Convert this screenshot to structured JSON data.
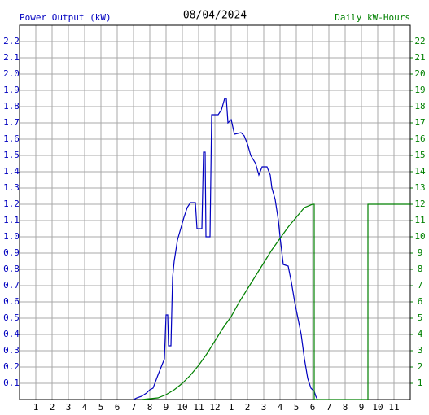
{
  "chart_data": {
    "type": "line",
    "title": "08/04/2024",
    "ylabel": "Power Output (kW)",
    "y2label": "Daily kW-Hours",
    "xlim": [
      0,
      24
    ],
    "xticks": [
      1,
      2,
      3,
      4,
      5,
      6,
      7,
      8,
      9,
      10,
      11,
      12,
      {
        "value": 13,
        "label": "1"
      },
      {
        "value": 14,
        "label": "2"
      },
      {
        "value": 15,
        "label": "3"
      },
      {
        "value": 16,
        "label": "4"
      },
      {
        "value": 17,
        "label": "5"
      },
      {
        "value": 18,
        "label": "6"
      },
      {
        "value": 19,
        "label": "7"
      },
      {
        "value": 20,
        "label": "8"
      },
      {
        "value": 21,
        "label": "9"
      },
      {
        "value": 22,
        "label": "10"
      },
      {
        "value": 23,
        "label": "11"
      }
    ],
    "ylim": [
      0,
      2.3
    ],
    "yticks": [
      0.1,
      0.2,
      0.3,
      0.4,
      0.5,
      0.6,
      0.7,
      0.8,
      0.9,
      {
        "value": 1.0,
        "label": "1.0"
      },
      1.1,
      1.2,
      1.3,
      1.4,
      1.5,
      1.6,
      1.7,
      1.8,
      1.9,
      {
        "value": 2.0,
        "label": "2.0"
      },
      2.1,
      2.2
    ],
    "y2lim": [
      0,
      23
    ],
    "y2ticks": [
      1,
      2,
      3,
      4,
      5,
      6,
      7,
      8,
      9,
      10,
      11,
      12,
      13,
      14,
      15,
      16,
      17,
      18,
      19,
      20,
      21,
      22
    ],
    "grid": true,
    "series": [
      {
        "color": "#0000c0",
        "x": [
          7.0,
          7.2,
          7.5,
          7.8,
          8.0,
          8.2,
          8.5,
          8.7,
          8.9,
          9.0,
          9.1,
          9.15,
          9.3,
          9.4,
          9.5,
          9.7,
          9.9,
          10.1,
          10.3,
          10.5,
          10.8,
          10.9,
          11.2,
          11.3,
          11.4,
          11.45,
          11.7,
          11.8,
          12.2,
          12.4,
          12.6,
          12.7,
          12.8,
          13.0,
          13.2,
          13.6,
          13.8,
          14.0,
          14.2,
          14.5,
          14.7,
          14.9,
          15.2,
          15.4,
          15.5,
          15.7,
          15.9,
          16.0,
          16.2,
          16.5,
          16.7,
          16.9,
          17.1,
          17.3,
          17.5,
          17.7,
          17.9,
          18.1,
          18.2,
          18.3
        ],
        "values": [
          0,
          0.01,
          0.02,
          0.04,
          0.06,
          0.07,
          0.15,
          0.2,
          0.25,
          0.52,
          0.52,
          0.33,
          0.33,
          0.75,
          0.85,
          0.98,
          1.05,
          1.12,
          1.18,
          1.21,
          1.21,
          1.05,
          1.05,
          1.52,
          1.52,
          1.0,
          1.0,
          1.75,
          1.75,
          1.78,
          1.85,
          1.85,
          1.7,
          1.72,
          1.63,
          1.64,
          1.62,
          1.57,
          1.5,
          1.45,
          1.38,
          1.43,
          1.43,
          1.38,
          1.3,
          1.23,
          1.1,
          1.0,
          0.83,
          0.82,
          0.72,
          0.6,
          0.5,
          0.4,
          0.25,
          0.13,
          0.07,
          0.05,
          0.02,
          0
        ]
      },
      {
        "color": "#008000",
        "axis": "y2",
        "x": [
          7.5,
          8.0,
          8.5,
          9.0,
          9.5,
          10.0,
          10.5,
          11.0,
          11.5,
          12.0,
          12.5,
          13.0,
          13.5,
          14.0,
          14.5,
          15.0,
          15.5,
          16.0,
          16.5,
          17.0,
          17.5,
          18.0,
          18.1,
          18.1,
          21.4,
          21.4,
          24
        ],
        "values": [
          0,
          0.05,
          0.1,
          0.3,
          0.6,
          1.0,
          1.5,
          2.1,
          2.8,
          3.6,
          4.4,
          5.1,
          6.0,
          6.8,
          7.6,
          8.4,
          9.2,
          9.9,
          10.6,
          11.2,
          11.8,
          12.0,
          12.0,
          0,
          0,
          12.0,
          12.0
        ]
      }
    ]
  }
}
